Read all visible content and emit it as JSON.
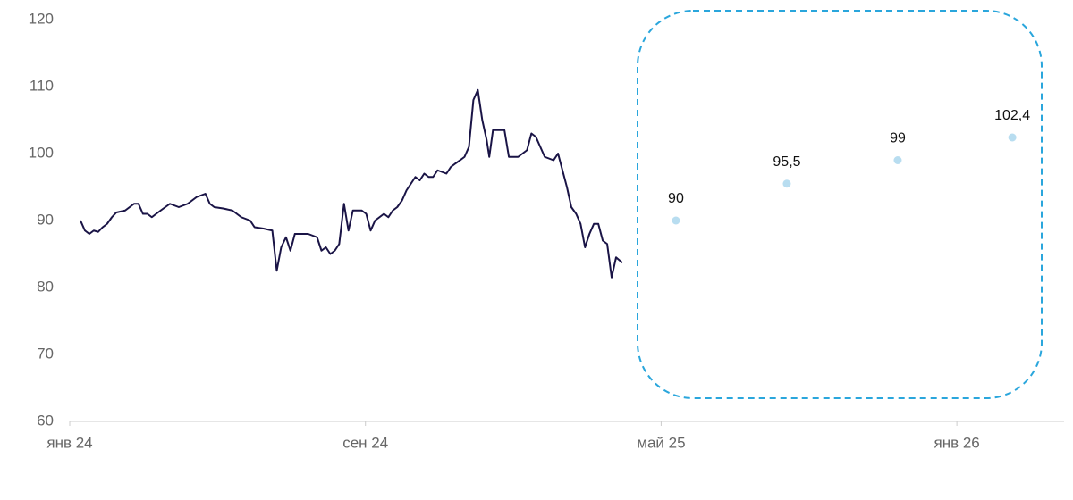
{
  "chart_data": {
    "type": "line",
    "xlim": [
      0,
      26.9
    ],
    "ylim": [
      60,
      120
    ],
    "xticks": [
      {
        "value": 0,
        "label": "янв 24"
      },
      {
        "value": 8,
        "label": "сен 24"
      },
      {
        "value": 16,
        "label": "май 25"
      },
      {
        "value": 24,
        "label": "янв 26"
      }
    ],
    "yticks": [
      60,
      70,
      80,
      90,
      100,
      110,
      120
    ],
    "series": [
      {
        "type": "line",
        "color": "#1a1446",
        "x": [
          0.29,
          0.41,
          0.53,
          0.65,
          0.77,
          0.89,
          1.01,
          1.14,
          1.26,
          1.5,
          1.74,
          1.86,
          1.98,
          2.1,
          2.22,
          2.46,
          2.71,
          2.95,
          3.19,
          3.43,
          3.67,
          3.79,
          3.91,
          4.15,
          4.4,
          4.64,
          4.88,
          5.0,
          5.24,
          5.48,
          5.6,
          5.72,
          5.85,
          5.97,
          6.09,
          6.45,
          6.69,
          6.81,
          6.93,
          7.05,
          7.17,
          7.29,
          7.42,
          7.54,
          7.66,
          7.9,
          8.02,
          8.14,
          8.26,
          8.5,
          8.62,
          8.74,
          8.86,
          8.99,
          9.11,
          9.23,
          9.35,
          9.47,
          9.59,
          9.71,
          9.83,
          9.95,
          10.19,
          10.31,
          10.43,
          10.56,
          10.68,
          10.8,
          10.92,
          11.04,
          11.16,
          11.28,
          11.35,
          11.45,
          11.64,
          11.76,
          11.88,
          12.13,
          12.37,
          12.49,
          12.61,
          12.73,
          12.85,
          13.09,
          13.21,
          13.33,
          13.45,
          13.57,
          13.7,
          13.82,
          13.94,
          14.06,
          14.18,
          14.3,
          14.42,
          14.54,
          14.66,
          14.78,
          14.95
        ],
        "values": [
          90,
          88.5,
          88,
          88.5,
          88.3,
          89,
          89.5,
          90.5,
          91.2,
          91.5,
          92.5,
          92.5,
          91,
          91,
          90.5,
          91.5,
          92.5,
          92,
          92.5,
          93.5,
          94,
          92.5,
          92,
          91.8,
          91.5,
          90.5,
          90,
          89,
          88.8,
          88.5,
          82.5,
          86,
          87.5,
          85.5,
          88,
          88,
          87.5,
          85.5,
          86,
          85,
          85.5,
          86.5,
          92.5,
          88.5,
          91.5,
          91.5,
          91,
          88.5,
          90,
          91,
          90.5,
          91.5,
          92,
          93,
          94.5,
          95.5,
          96.5,
          96,
          97,
          96.5,
          96.5,
          97.5,
          97,
          98,
          98.5,
          99,
          99.5,
          101,
          108,
          109.5,
          105,
          102,
          99.5,
          103.5,
          103.5,
          103.5,
          99.5,
          99.5,
          100.5,
          103,
          102.5,
          101,
          99.5,
          99,
          100,
          97.5,
          95,
          92,
          91,
          89.5,
          86,
          88,
          89.5,
          89.5,
          87,
          86.5,
          81.5,
          84.5,
          83.7
        ]
      },
      {
        "type": "scatter",
        "color": "#b8ddf0",
        "x": [
          16.4,
          19.4,
          22.4,
          25.5
        ],
        "values": [
          90,
          95.5,
          99,
          102.4
        ],
        "value_labels": [
          "90",
          "95,5",
          "99",
          "102,4"
        ]
      }
    ]
  }
}
